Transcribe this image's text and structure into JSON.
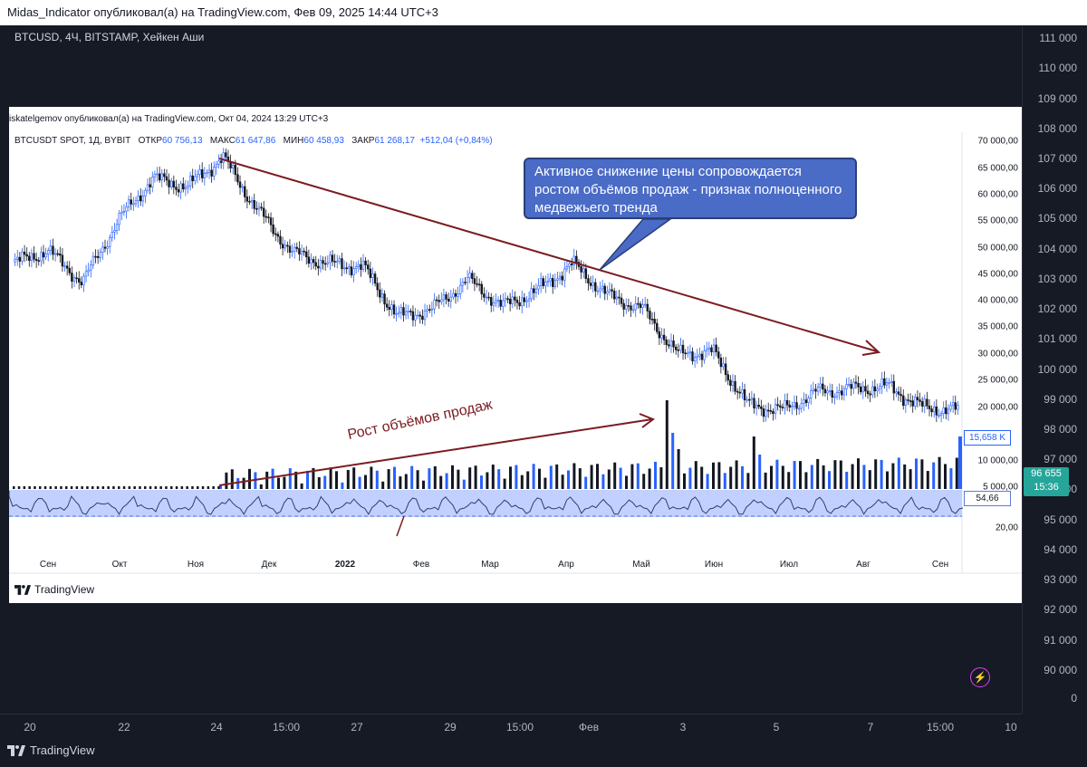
{
  "outer": {
    "publish_line": "Midas_Indicator опубликовал(а) на TradingView.com, Фев 09, 2025 14:44 UTC+3",
    "legend": "BTCUSD, 4Ч, BITSTAMP, Хейкен Аши",
    "price_labels": [
      "111 000",
      "110 000",
      "109 000",
      "108 000",
      "107 000",
      "106 000",
      "105 000",
      "104 000",
      "103 000",
      "102 000",
      "101 000",
      "100 000",
      "99 000",
      "98 000",
      "97 000",
      "96 000",
      "95 000",
      "94 000",
      "93 000",
      "92 000",
      "91 000",
      "90 000",
      "0"
    ],
    "time_labels": [
      "20",
      "22",
      "24",
      "15:00",
      "27",
      "29",
      "15:00",
      "Фев",
      "3",
      "5",
      "7",
      "15:00",
      "10"
    ],
    "last_price": "96 655",
    "last_time": "15:36",
    "brand": "TradingView",
    "colors": {
      "background": "#161a24",
      "last_price": "#26a69a",
      "flash": "#e040fb"
    },
    "icons": [
      "tradingview-logo-icon",
      "flash-icon"
    ]
  },
  "inner": {
    "publish_line": "iskatelgemov опубликовал(а) на TradingView.com, Окт 04, 2024 13:29 UTC+3",
    "symbol": "BTCUSDT SPOT, 1Д, BYBIT",
    "open_label": "ОТКР",
    "open": "60 756,13",
    "high_label": "МАКС",
    "high": "61 647,86",
    "low_label": "МИН",
    "low": "60 458,93",
    "close_label": "ЗАКР",
    "close": "61 268,17",
    "change": "+512,04 (+0,84%)",
    "price_labels": [
      "70 000,00",
      "65 000,00",
      "60 000,00",
      "55 000,00",
      "50 000,00",
      "45 000,00",
      "40 000,00",
      "35 000,00",
      "30 000,00",
      "25 000,00",
      "20 000,00",
      "10 000,00",
      "5 000,00",
      "20,00"
    ],
    "volume_value": "15,658 K",
    "osc_value": "54,66",
    "time_labels": [
      "Сен",
      "Окт",
      "Ноя",
      "Дек",
      "2022",
      "Фев",
      "Мар",
      "Апр",
      "Май",
      "Июн",
      "Июл",
      "Авг",
      "Сен"
    ],
    "callout": "Активное снижение цены сопровождается ростом объёмов продаж - признак полноценного медвежьего тренда",
    "volume_note": "Рост объёмов продаж",
    "brand": "TradingView",
    "colors": {
      "up": "#2962ff",
      "down": "#131722",
      "trend_arrow": "#7b1c22",
      "callout_bg": "#4a6bc6"
    }
  },
  "chart_data": {
    "type": "candlestick",
    "title": "BTCUSDT SPOT, 1Д, BYBIT",
    "x_range": [
      "2021-08",
      "2022-09"
    ],
    "ylim": [
      20000,
      70000
    ],
    "grid": false,
    "close_path": [
      {
        "t": "Сен",
        "v": 47000
      },
      {
        "t": "Сен",
        "v": 49500
      },
      {
        "t": "Окт",
        "v": 43500
      },
      {
        "t": "Окт",
        "v": 55000
      },
      {
        "t": "Окт",
        "v": 63000
      },
      {
        "t": "Ноя",
        "v": 61500
      },
      {
        "t": "Ноя",
        "v": 67000
      },
      {
        "t": "Ноя",
        "v": 57000
      },
      {
        "t": "Дек",
        "v": 49000
      },
      {
        "t": "Дек",
        "v": 47000
      },
      {
        "t": "2022",
        "v": 46500
      },
      {
        "t": "2022",
        "v": 37000
      },
      {
        "t": "Фев",
        "v": 38500
      },
      {
        "t": "Фев",
        "v": 44000
      },
      {
        "t": "Мар",
        "v": 39000
      },
      {
        "t": "Мар",
        "v": 42000
      },
      {
        "t": "Апр",
        "v": 47000
      },
      {
        "t": "Апр",
        "v": 41000
      },
      {
        "t": "Май",
        "v": 38500
      },
      {
        "t": "Май",
        "v": 30000
      },
      {
        "t": "Июн",
        "v": 30500
      },
      {
        "t": "Июн",
        "v": 20500
      },
      {
        "t": "Июл",
        "v": 19500
      },
      {
        "t": "Июл",
        "v": 23000
      },
      {
        "t": "Авг",
        "v": 23500
      },
      {
        "t": "Авг",
        "v": 24000
      },
      {
        "t": "Сен",
        "v": 20000
      },
      {
        "t": "Сен",
        "v": 19500
      }
    ],
    "volume_last": "15,658 K",
    "oscillator_last": "54,66",
    "annotations": [
      "Активное снижение цены сопровождается ростом объёмов продаж - признак полноценного медвежьего тренда",
      "Рост объёмов продаж"
    ]
  }
}
